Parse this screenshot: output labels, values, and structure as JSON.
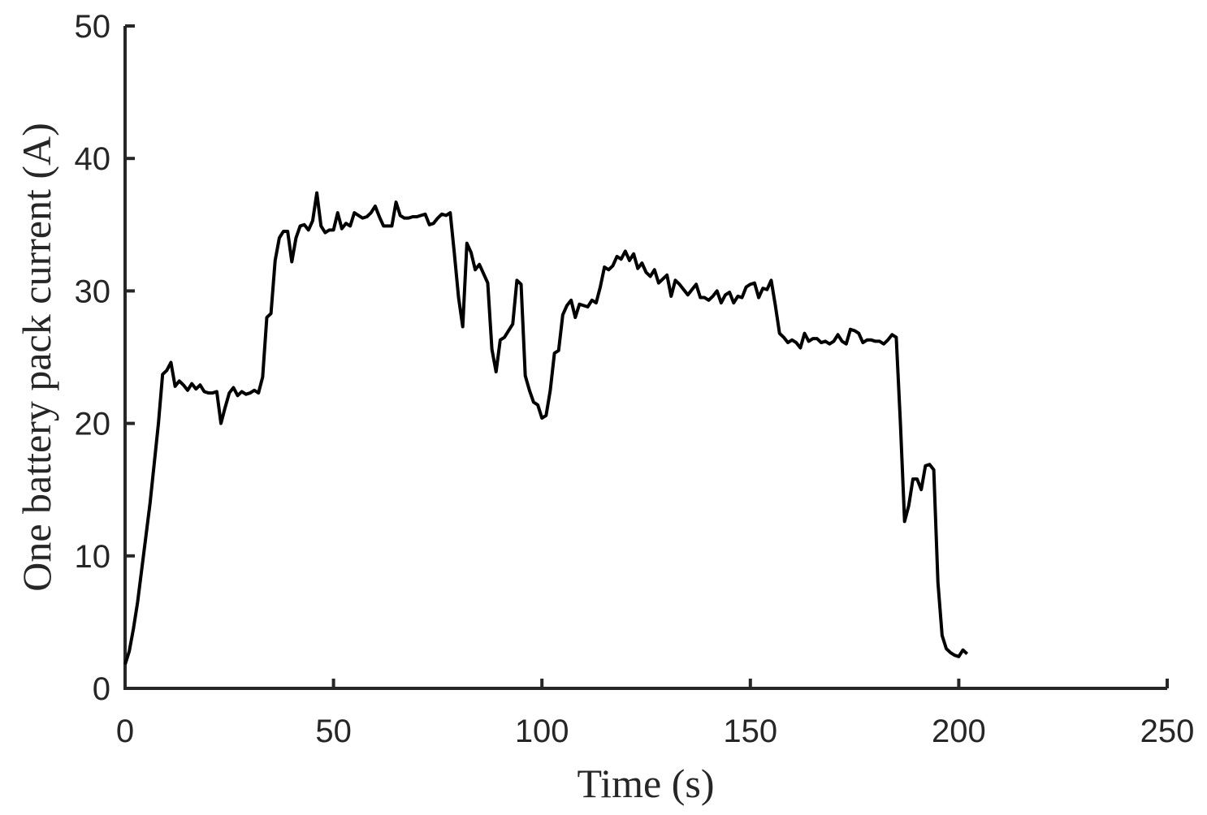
{
  "chart_data": {
    "type": "line",
    "x_label": "Time (s)",
    "y_label": "One battery pack current (A)",
    "xlim": [
      0,
      250
    ],
    "xticks": [
      0,
      50,
      100,
      150,
      200,
      250
    ],
    "ylim": [
      0,
      50
    ],
    "yticks": [
      0,
      10,
      20,
      30,
      40,
      50
    ],
    "color": "#000000",
    "x": [
      0,
      1,
      2,
      3,
      4,
      5,
      6,
      7,
      8,
      9,
      10,
      11,
      12,
      13,
      14,
      15,
      16,
      17,
      18,
      19,
      20,
      21,
      22,
      23,
      24,
      25,
      26,
      27,
      28,
      29,
      30,
      31,
      32,
      33,
      34,
      35,
      36,
      37,
      38,
      39,
      40,
      41,
      42,
      43,
      44,
      45,
      46,
      47,
      48,
      49,
      50,
      51,
      52,
      53,
      54,
      55,
      56,
      57,
      58,
      59,
      60,
      61,
      62,
      63,
      64,
      65,
      66,
      67,
      68,
      69,
      70,
      71,
      72,
      73,
      74,
      75,
      76,
      77,
      78,
      79,
      80,
      81,
      82,
      83,
      84,
      85,
      86,
      87,
      88,
      89,
      90,
      91,
      92,
      93,
      94,
      95,
      96,
      97,
      98,
      99,
      100,
      101,
      102,
      103,
      104,
      105,
      106,
      107,
      108,
      109,
      110,
      111,
      112,
      113,
      114,
      115,
      116,
      117,
      118,
      119,
      120,
      121,
      122,
      123,
      124,
      125,
      126,
      127,
      128,
      129,
      130,
      131,
      132,
      133,
      134,
      135,
      136,
      137,
      138,
      139,
      140,
      141,
      142,
      143,
      144,
      145,
      146,
      147,
      148,
      149,
      150,
      151,
      152,
      153,
      154,
      155,
      156,
      157,
      158,
      159,
      160,
      161,
      162,
      163,
      164,
      165,
      166,
      167,
      168,
      169,
      170,
      171,
      172,
      173,
      174,
      175,
      176,
      177,
      178,
      179,
      180,
      181,
      182,
      183,
      184,
      185,
      186,
      187,
      188,
      189,
      190,
      191,
      192,
      193,
      194,
      195,
      196,
      197,
      198,
      199,
      200,
      201,
      202
    ],
    "values": [
      1.8,
      2.8,
      4.5,
      6.5,
      9,
      11.5,
      14,
      17,
      20,
      23.7,
      24,
      24.6,
      22.8,
      23.2,
      22.9,
      22.5,
      23,
      22.6,
      22.9,
      22.4,
      22.3,
      22.3,
      22.4,
      20,
      21.2,
      22.3,
      22.7,
      22.1,
      22.4,
      22.2,
      22.3,
      22.5,
      22.3,
      23.5,
      28,
      28.3,
      32.3,
      34,
      34.5,
      34.5,
      32.2,
      34,
      34.9,
      35,
      34.6,
      35.3,
      37.4,
      34.9,
      34.4,
      34.6,
      34.6,
      35.9,
      34.7,
      35.1,
      34.9,
      35.9,
      35.7,
      35.5,
      35.6,
      35.9,
      36.4,
      35.6,
      34.9,
      34.9,
      34.9,
      36.7,
      35.7,
      35.5,
      35.5,
      35.6,
      35.6,
      35.7,
      35.8,
      35,
      35.1,
      35.5,
      35.8,
      35.7,
      35.9,
      32.8,
      29.5,
      27.3,
      33.6,
      32.9,
      31.6,
      32,
      31.3,
      30.6,
      25.6,
      23.9,
      26.3,
      26.5,
      27,
      27.5,
      30.8,
      30.5,
      23.6,
      22.5,
      21.6,
      21.4,
      20.4,
      20.6,
      22.5,
      25.3,
      25.5,
      28.2,
      28.9,
      29.3,
      28,
      29,
      28.9,
      28.8,
      29.3,
      29.1,
      30.3,
      31.8,
      31.6,
      31.9,
      32.6,
      32.4,
      33,
      32.3,
      32.8,
      31.7,
      32.1,
      31.4,
      31.1,
      31.6,
      30.6,
      30.9,
      31.2,
      29.6,
      30.8,
      30.5,
      30.1,
      29.7,
      30.1,
      30.5,
      29.5,
      29.5,
      29.3,
      29.6,
      30,
      29.1,
      29.7,
      29.9,
      29.1,
      29.6,
      29.5,
      30.3,
      30.5,
      30.6,
      29.5,
      30.2,
      30.1,
      30.8,
      28.9,
      26.8,
      26.5,
      26.1,
      26.3,
      26.1,
      25.7,
      26.8,
      26.2,
      26.4,
      26.4,
      26.1,
      26.2,
      26,
      26.2,
      26.7,
      26.2,
      26,
      27.1,
      27,
      26.8,
      26.1,
      26.3,
      26.3,
      26.2,
      26.2,
      26,
      26.3,
      26.7,
      26.5,
      20,
      12.6,
      13.8,
      15.8,
      15.8,
      15,
      16.8,
      16.9,
      16.5,
      8,
      4,
      3,
      2.7,
      2.5,
      2.4,
      2.9,
      2.6
    ]
  }
}
